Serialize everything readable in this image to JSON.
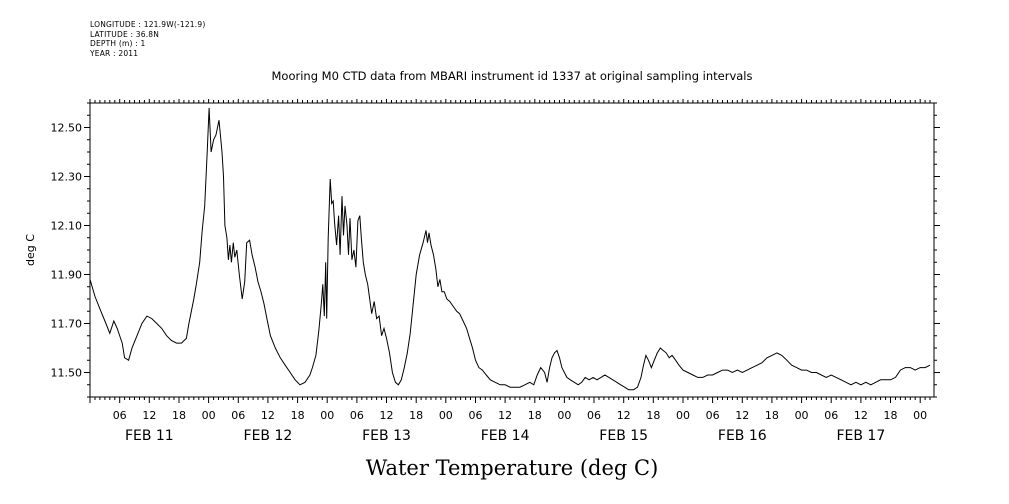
{
  "metadata": {
    "longitude": "LONGITUDE : 121.9W(-121.9)",
    "latitude": "LATITUDE : 36.8N",
    "depth": "DEPTH (m) : 1",
    "year": "YEAR : 2011"
  },
  "chart_data": {
    "type": "line",
    "title": "Mooring M0 CTD data from MBARI instrument id 1337 at original sampling intervals",
    "xlabel": "Water Temperature (deg C)",
    "ylabel": "deg C",
    "ylim": [
      11.4,
      12.6
    ],
    "yticks": [
      "11.50",
      "11.70",
      "11.90",
      "12.10",
      "12.30",
      "12.50"
    ],
    "xlim_hours": [
      -0.01,
      170.8
    ],
    "hour_ticks": [
      {
        "h": 6,
        "label": "06"
      },
      {
        "h": 12,
        "label": "12"
      },
      {
        "h": 18,
        "label": "18"
      },
      {
        "h": 24,
        "label": "00"
      },
      {
        "h": 30,
        "label": "06"
      },
      {
        "h": 36,
        "label": "12"
      },
      {
        "h": 42,
        "label": "18"
      },
      {
        "h": 48,
        "label": "00"
      },
      {
        "h": 54,
        "label": "06"
      },
      {
        "h": 60,
        "label": "12"
      },
      {
        "h": 66,
        "label": "18"
      },
      {
        "h": 72,
        "label": "00"
      },
      {
        "h": 78,
        "label": "06"
      },
      {
        "h": 84,
        "label": "12"
      },
      {
        "h": 90,
        "label": "18"
      },
      {
        "h": 96,
        "label": "00"
      },
      {
        "h": 102,
        "label": "06"
      },
      {
        "h": 108,
        "label": "12"
      },
      {
        "h": 114,
        "label": "18"
      },
      {
        "h": 120,
        "label": "00"
      },
      {
        "h": 126,
        "label": "06"
      },
      {
        "h": 132,
        "label": "12"
      },
      {
        "h": 138,
        "label": "18"
      },
      {
        "h": 144,
        "label": "00"
      },
      {
        "h": 150,
        "label": "06"
      },
      {
        "h": 156,
        "label": "12"
      },
      {
        "h": 162,
        "label": "18"
      },
      {
        "h": 168,
        "label": "00"
      }
    ],
    "day_labels": [
      {
        "h": 12,
        "label": "FEB 11"
      },
      {
        "h": 36,
        "label": "FEB 12"
      },
      {
        "h": 60,
        "label": "FEB 13"
      },
      {
        "h": 84,
        "label": "FEB 14"
      },
      {
        "h": 108,
        "label": "FEB 15"
      },
      {
        "h": 132,
        "label": "FEB 16"
      },
      {
        "h": 156,
        "label": "FEB 17"
      }
    ],
    "series": [
      {
        "values": [
          [
            0,
            11.88
          ],
          [
            1,
            11.81
          ],
          [
            2,
            11.76
          ],
          [
            3,
            11.71
          ],
          [
            4,
            11.66
          ],
          [
            4.8,
            11.71
          ],
          [
            5.5,
            11.68
          ],
          [
            6.5,
            11.62
          ],
          [
            7,
            11.56
          ],
          [
            7.8,
            11.55
          ],
          [
            8.5,
            11.6
          ],
          [
            9.5,
            11.65
          ],
          [
            10.5,
            11.7
          ],
          [
            11.5,
            11.73
          ],
          [
            12.5,
            11.72
          ],
          [
            13.5,
            11.7
          ],
          [
            14.5,
            11.68
          ],
          [
            15.5,
            11.65
          ],
          [
            16.5,
            11.63
          ],
          [
            17.5,
            11.62
          ],
          [
            18.5,
            11.62
          ],
          [
            19.5,
            11.64
          ],
          [
            20,
            11.7
          ],
          [
            21,
            11.8
          ],
          [
            21.5,
            11.86
          ],
          [
            22.2,
            11.95
          ],
          [
            22.7,
            12.08
          ],
          [
            23.2,
            12.18
          ],
          [
            23.7,
            12.4
          ],
          [
            24.1,
            12.58
          ],
          [
            24.5,
            12.4
          ],
          [
            25,
            12.45
          ],
          [
            25.5,
            12.47
          ],
          [
            26.1,
            12.53
          ],
          [
            26.7,
            12.4
          ],
          [
            27,
            12.3
          ],
          [
            27.3,
            12.1
          ],
          [
            27.7,
            12.05
          ],
          [
            28,
            11.96
          ],
          [
            28.3,
            12.02
          ],
          [
            28.6,
            11.95
          ],
          [
            29,
            12.03
          ],
          [
            29.3,
            11.97
          ],
          [
            29.7,
            12.0
          ],
          [
            30.2,
            11.9
          ],
          [
            30.8,
            11.8
          ],
          [
            31.3,
            11.87
          ],
          [
            31.7,
            12.03
          ],
          [
            32.3,
            12.04
          ],
          [
            32.8,
            11.98
          ],
          [
            33.4,
            11.93
          ],
          [
            34,
            11.87
          ],
          [
            34.6,
            11.83
          ],
          [
            35.2,
            11.78
          ],
          [
            35.8,
            11.72
          ],
          [
            36.5,
            11.65
          ],
          [
            37.5,
            11.6
          ],
          [
            38.5,
            11.56
          ],
          [
            39.5,
            11.53
          ],
          [
            40.5,
            11.5
          ],
          [
            41.5,
            11.47
          ],
          [
            42.5,
            11.45
          ],
          [
            43.5,
            11.46
          ],
          [
            44.5,
            11.49
          ],
          [
            45,
            11.52
          ],
          [
            45.7,
            11.57
          ],
          [
            46.3,
            11.67
          ],
          [
            46.8,
            11.78
          ],
          [
            47.1,
            11.86
          ],
          [
            47.4,
            11.73
          ],
          [
            47.7,
            11.95
          ],
          [
            47.9,
            11.72
          ],
          [
            48.2,
            12.05
          ],
          [
            48.6,
            12.29
          ],
          [
            48.9,
            12.19
          ],
          [
            49.2,
            12.2
          ],
          [
            49.5,
            12.11
          ],
          [
            49.9,
            12.02
          ],
          [
            50.3,
            12.14
          ],
          [
            50.6,
            11.98
          ],
          [
            51,
            12.22
          ],
          [
            51.3,
            12.06
          ],
          [
            51.6,
            12.18
          ],
          [
            52,
            12.1
          ],
          [
            52.3,
            11.98
          ],
          [
            52.6,
            12.13
          ],
          [
            53,
            11.96
          ],
          [
            53.4,
            12.0
          ],
          [
            53.8,
            11.93
          ],
          [
            54.2,
            12.12
          ],
          [
            54.6,
            12.14
          ],
          [
            54.9,
            12.05
          ],
          [
            55.3,
            11.95
          ],
          [
            55.7,
            11.9
          ],
          [
            56.2,
            11.86
          ],
          [
            56.6,
            11.8
          ],
          [
            57,
            11.74
          ],
          [
            57.5,
            11.79
          ],
          [
            58,
            11.72
          ],
          [
            58.5,
            11.73
          ],
          [
            59,
            11.65
          ],
          [
            59.5,
            11.68
          ],
          [
            60,
            11.64
          ],
          [
            60.6,
            11.58
          ],
          [
            61.2,
            11.5
          ],
          [
            61.8,
            11.46
          ],
          [
            62.4,
            11.45
          ],
          [
            63,
            11.47
          ],
          [
            63.6,
            11.52
          ],
          [
            64.2,
            11.58
          ],
          [
            64.8,
            11.66
          ],
          [
            65.4,
            11.78
          ],
          [
            66,
            11.9
          ],
          [
            66.7,
            11.98
          ],
          [
            67.4,
            12.03
          ],
          [
            68,
            12.08
          ],
          [
            68.3,
            12.03
          ],
          [
            68.6,
            12.07
          ],
          [
            69,
            12.02
          ],
          [
            69.5,
            11.98
          ],
          [
            70,
            11.92
          ],
          [
            70.4,
            11.85
          ],
          [
            70.8,
            11.88
          ],
          [
            71.2,
            11.83
          ],
          [
            71.7,
            11.83
          ],
          [
            72.2,
            11.8
          ],
          [
            72.8,
            11.79
          ],
          [
            73.5,
            11.77
          ],
          [
            74.2,
            11.75
          ],
          [
            74.8,
            11.74
          ],
          [
            75.5,
            11.71
          ],
          [
            76.2,
            11.68
          ],
          [
            76.8,
            11.64
          ],
          [
            77.4,
            11.6
          ],
          [
            78,
            11.55
          ],
          [
            78.7,
            11.52
          ],
          [
            79.4,
            11.51
          ],
          [
            80.2,
            11.49
          ],
          [
            81,
            11.47
          ],
          [
            82,
            11.46
          ],
          [
            83,
            11.45
          ],
          [
            84,
            11.45
          ],
          [
            85,
            11.44
          ],
          [
            86,
            11.44
          ],
          [
            87,
            11.44
          ],
          [
            88,
            11.45
          ],
          [
            89,
            11.46
          ],
          [
            89.8,
            11.45
          ],
          [
            90.5,
            11.49
          ],
          [
            91.2,
            11.52
          ],
          [
            92,
            11.5
          ],
          [
            92.5,
            11.46
          ],
          [
            93,
            11.52
          ],
          [
            93.5,
            11.56
          ],
          [
            94,
            11.58
          ],
          [
            94.5,
            11.59
          ],
          [
            95,
            11.56
          ],
          [
            95.5,
            11.52
          ],
          [
            96,
            11.5
          ],
          [
            96.5,
            11.48
          ],
          [
            97.2,
            11.47
          ],
          [
            98,
            11.46
          ],
          [
            98.8,
            11.45
          ],
          [
            99.5,
            11.46
          ],
          [
            100.2,
            11.48
          ],
          [
            101,
            11.47
          ],
          [
            101.8,
            11.48
          ],
          [
            102.6,
            11.47
          ],
          [
            103.4,
            11.48
          ],
          [
            104.2,
            11.49
          ],
          [
            105,
            11.48
          ],
          [
            105.8,
            11.47
          ],
          [
            106.6,
            11.46
          ],
          [
            107.4,
            11.45
          ],
          [
            108.2,
            11.44
          ],
          [
            109,
            11.43
          ],
          [
            110,
            11.43
          ],
          [
            110.8,
            11.44
          ],
          [
            111.5,
            11.48
          ],
          [
            112,
            11.53
          ],
          [
            112.5,
            11.57
          ],
          [
            113,
            11.55
          ],
          [
            113.6,
            11.52
          ],
          [
            114.2,
            11.55
          ],
          [
            114.8,
            11.58
          ],
          [
            115.4,
            11.6
          ],
          [
            116,
            11.59
          ],
          [
            116.6,
            11.58
          ],
          [
            117.2,
            11.56
          ],
          [
            117.8,
            11.57
          ],
          [
            118.5,
            11.55
          ],
          [
            119.2,
            11.53
          ],
          [
            120,
            11.51
          ],
          [
            121,
            11.5
          ],
          [
            122,
            11.49
          ],
          [
            123,
            11.48
          ],
          [
            124,
            11.48
          ],
          [
            125,
            11.49
          ],
          [
            126,
            11.49
          ],
          [
            127,
            11.5
          ],
          [
            128,
            11.51
          ],
          [
            129,
            11.51
          ],
          [
            130,
            11.5
          ],
          [
            131,
            11.51
          ],
          [
            132,
            11.5
          ],
          [
            133,
            11.51
          ],
          [
            134,
            11.52
          ],
          [
            135,
            11.53
          ],
          [
            136,
            11.54
          ],
          [
            137,
            11.56
          ],
          [
            138,
            11.57
          ],
          [
            139,
            11.58
          ],
          [
            140,
            11.57
          ],
          [
            141,
            11.55
          ],
          [
            142,
            11.53
          ],
          [
            143,
            11.52
          ],
          [
            144,
            11.51
          ],
          [
            145,
            11.51
          ],
          [
            146,
            11.5
          ],
          [
            147,
            11.5
          ],
          [
            148,
            11.49
          ],
          [
            149,
            11.48
          ],
          [
            150,
            11.49
          ],
          [
            151,
            11.48
          ],
          [
            152,
            11.47
          ],
          [
            153,
            11.46
          ],
          [
            154,
            11.45
          ],
          [
            155,
            11.46
          ],
          [
            156,
            11.45
          ],
          [
            157,
            11.46
          ],
          [
            158,
            11.45
          ],
          [
            159,
            11.46
          ],
          [
            160,
            11.47
          ],
          [
            161,
            11.47
          ],
          [
            162,
            11.47
          ],
          [
            163,
            11.48
          ],
          [
            164,
            11.51
          ],
          [
            165,
            11.52
          ],
          [
            166,
            11.52
          ],
          [
            167,
            11.51
          ],
          [
            168,
            11.52
          ],
          [
            169,
            11.52
          ],
          [
            170,
            11.53
          ]
        ]
      }
    ]
  }
}
